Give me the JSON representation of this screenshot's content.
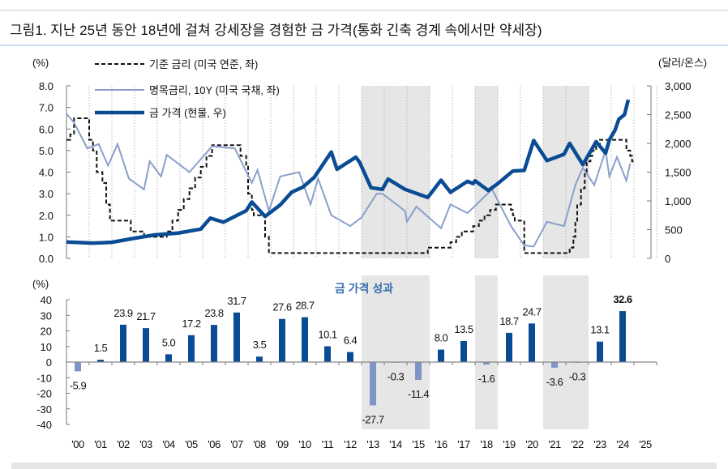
{
  "title": "그림1.  지난 25년 동안 18년에 걸쳐 강세장을 경험한 금 가격(통화 긴축 경계 속에서만 약세장)",
  "colors": {
    "gold": "#0a4c94",
    "yield": "#8a9fcb",
    "fed": "#111111",
    "bar_pos": "#0a4c94",
    "bar_neg": "#7f95c6",
    "shade": "#e6e6e6"
  },
  "chart_data": [
    {
      "type": "line",
      "left_unit": "(%)",
      "right_unit": "(달러/온스)",
      "left_ylim": [
        0,
        8
      ],
      "right_ylim": [
        0,
        3000
      ],
      "left_ticks": [
        "8.0",
        "7.0",
        "6.0",
        "5.0",
        "4.0",
        "3.0",
        "2.0",
        "1.0",
        "0.0"
      ],
      "right_ticks": [
        "3,000",
        "2,500",
        "2,000",
        "1,500",
        "1,000",
        "500",
        "0"
      ],
      "xlim": [
        "2000-01",
        "2025-12"
      ],
      "shaded_periods": [
        [
          "2013-01",
          "2015-12"
        ],
        [
          "2018-01",
          "2018-12"
        ],
        [
          "2021-01",
          "2022-12"
        ]
      ],
      "series": [
        {
          "name": "기준 금리 (미국 연준, 좌)",
          "axis": "left",
          "style": "dashed-step",
          "points": [
            [
              "2000-01",
              5.5
            ],
            [
              "2000-03",
              5.75
            ],
            [
              "2000-05",
              6.5
            ],
            [
              "2001-01",
              5.5
            ],
            [
              "2001-03",
              5.0
            ],
            [
              "2001-05",
              4.0
            ],
            [
              "2001-08",
              3.5
            ],
            [
              "2001-10",
              2.5
            ],
            [
              "2001-12",
              1.75
            ],
            [
              "2002-11",
              1.25
            ],
            [
              "2003-06",
              1.0
            ],
            [
              "2004-06",
              1.25
            ],
            [
              "2004-09",
              1.75
            ],
            [
              "2004-12",
              2.25
            ],
            [
              "2005-03",
              2.75
            ],
            [
              "2005-06",
              3.25
            ],
            [
              "2005-09",
              3.75
            ],
            [
              "2005-12",
              4.25
            ],
            [
              "2006-03",
              4.75
            ],
            [
              "2006-06",
              5.25
            ],
            [
              "2007-09",
              4.75
            ],
            [
              "2007-12",
              4.25
            ],
            [
              "2008-01",
              3.0
            ],
            [
              "2008-03",
              2.25
            ],
            [
              "2008-04",
              2.0
            ],
            [
              "2008-10",
              1.0
            ],
            [
              "2008-12",
              0.25
            ],
            [
              "2015-12",
              0.5
            ],
            [
              "2016-12",
              0.75
            ],
            [
              "2017-03",
              1.0
            ],
            [
              "2017-06",
              1.25
            ],
            [
              "2017-12",
              1.5
            ],
            [
              "2018-03",
              1.75
            ],
            [
              "2018-06",
              2.0
            ],
            [
              "2018-09",
              2.25
            ],
            [
              "2018-12",
              2.5
            ],
            [
              "2019-08",
              2.25
            ],
            [
              "2019-09",
              2.0
            ],
            [
              "2019-10",
              1.75
            ],
            [
              "2020-03",
              0.25
            ],
            [
              "2022-03",
              0.5
            ],
            [
              "2022-05",
              1.0
            ],
            [
              "2022-06",
              1.75
            ],
            [
              "2022-07",
              2.5
            ],
            [
              "2022-09",
              3.25
            ],
            [
              "2022-11",
              4.0
            ],
            [
              "2022-12",
              4.5
            ],
            [
              "2023-02",
              4.75
            ],
            [
              "2023-03",
              5.0
            ],
            [
              "2023-05",
              5.25
            ],
            [
              "2023-07",
              5.5
            ],
            [
              "2024-09",
              5.0
            ],
            [
              "2024-11",
              4.75
            ],
            [
              "2024-12",
              4.5
            ]
          ]
        },
        {
          "name": "명목금리, 10Y (미국 국채, 좌)",
          "axis": "left",
          "style": "thin",
          "points": [
            [
              "2000-01",
              6.7
            ],
            [
              "2000-05",
              6.3
            ],
            [
              "2000-12",
              5.1
            ],
            [
              "2001-06",
              5.3
            ],
            [
              "2001-11",
              4.3
            ],
            [
              "2002-04",
              5.3
            ],
            [
              "2002-10",
              3.7
            ],
            [
              "2003-06",
              3.2
            ],
            [
              "2003-09",
              4.5
            ],
            [
              "2004-03",
              3.8
            ],
            [
              "2004-06",
              4.8
            ],
            [
              "2005-06",
              4.0
            ],
            [
              "2006-06",
              5.2
            ],
            [
              "2007-06",
              5.1
            ],
            [
              "2008-03",
              3.5
            ],
            [
              "2008-06",
              4.1
            ],
            [
              "2008-12",
              2.2
            ],
            [
              "2009-06",
              3.8
            ],
            [
              "2010-04",
              4.0
            ],
            [
              "2010-10",
              2.5
            ],
            [
              "2011-02",
              3.7
            ],
            [
              "2011-09",
              2.0
            ],
            [
              "2012-07",
              1.5
            ],
            [
              "2013-01",
              1.9
            ],
            [
              "2013-09",
              3.0
            ],
            [
              "2013-12",
              3.0
            ],
            [
              "2014-12",
              2.2
            ],
            [
              "2015-01",
              1.7
            ],
            [
              "2015-06",
              2.4
            ],
            [
              "2016-07",
              1.4
            ],
            [
              "2016-12",
              2.5
            ],
            [
              "2017-09",
              2.1
            ],
            [
              "2018-10",
              3.2
            ],
            [
              "2019-08",
              1.5
            ],
            [
              "2020-03",
              0.6
            ],
            [
              "2020-08",
              0.55
            ],
            [
              "2021-03",
              1.7
            ],
            [
              "2021-12",
              1.5
            ],
            [
              "2022-06",
              3.4
            ],
            [
              "2022-10",
              4.2
            ],
            [
              "2023-04",
              3.4
            ],
            [
              "2023-10",
              5.0
            ],
            [
              "2023-12",
              3.8
            ],
            [
              "2024-04",
              4.7
            ],
            [
              "2024-09",
              3.6
            ],
            [
              "2024-11",
              4.4
            ]
          ]
        },
        {
          "name": "금 가격 (현물, 우)",
          "axis": "right",
          "style": "thick",
          "points": [
            [
              "2000-01",
              285
            ],
            [
              "2001-03",
              265
            ],
            [
              "2002-01",
              280
            ],
            [
              "2002-12",
              345
            ],
            [
              "2003-12",
              410
            ],
            [
              "2004-12",
              440
            ],
            [
              "2005-12",
              510
            ],
            [
              "2006-05",
              700
            ],
            [
              "2006-12",
              630
            ],
            [
              "2007-12",
              830
            ],
            [
              "2008-03",
              980
            ],
            [
              "2008-10",
              730
            ],
            [
              "2009-06",
              930
            ],
            [
              "2009-12",
              1150
            ],
            [
              "2010-06",
              1240
            ],
            [
              "2010-12",
              1410
            ],
            [
              "2011-09",
              1850
            ],
            [
              "2011-12",
              1550
            ],
            [
              "2012-10",
              1760
            ],
            [
              "2012-12",
              1670
            ],
            [
              "2013-06",
              1230
            ],
            [
              "2013-12",
              1200
            ],
            [
              "2014-03",
              1380
            ],
            [
              "2014-12",
              1200
            ],
            [
              "2015-12",
              1060
            ],
            [
              "2016-07",
              1360
            ],
            [
              "2016-12",
              1150
            ],
            [
              "2017-09",
              1340
            ],
            [
              "2017-12",
              1300
            ],
            [
              "2018-01",
              1350
            ],
            [
              "2018-08",
              1180
            ],
            [
              "2019-01",
              1300
            ],
            [
              "2019-09",
              1520
            ],
            [
              "2020-03",
              1530
            ],
            [
              "2020-08",
              2050
            ],
            [
              "2021-03",
              1700
            ],
            [
              "2021-12",
              1810
            ],
            [
              "2022-03",
              2000
            ],
            [
              "2022-10",
              1630
            ],
            [
              "2023-05",
              2030
            ],
            [
              "2023-10",
              1830
            ],
            [
              "2023-12",
              2060
            ],
            [
              "2024-03",
              2230
            ],
            [
              "2024-05",
              2420
            ],
            [
              "2024-08",
              2500
            ],
            [
              "2024-10",
              2760
            ]
          ]
        }
      ]
    },
    {
      "type": "bar",
      "title": "금 가격 성과",
      "unit": "(%)",
      "ylim": [
        -40,
        40
      ],
      "y_ticks": [
        "40",
        "30",
        "20",
        "10",
        "0",
        "-10",
        "-20",
        "-30",
        "-40"
      ],
      "categories": [
        "'00",
        "'01",
        "'02",
        "'03",
        "'04",
        "'05",
        "'06",
        "'07",
        "'08",
        "'09",
        "'10",
        "'11",
        "'12",
        "'13",
        "'14",
        "'15",
        "'16",
        "'17",
        "'18",
        "'19",
        "'20",
        "'21",
        "'22",
        "'23",
        "'24",
        "'25"
      ],
      "values": [
        -5.9,
        1.5,
        23.9,
        21.7,
        5.0,
        17.2,
        23.8,
        31.7,
        3.5,
        27.6,
        28.7,
        10.1,
        6.4,
        -27.7,
        -0.3,
        -11.4,
        8.0,
        13.5,
        -1.6,
        18.7,
        24.7,
        -3.6,
        -0.3,
        13.1,
        32.6,
        null
      ],
      "labels": [
        "-5.9",
        "1.5",
        "23.9",
        "21.7",
        "5.0",
        "17.2",
        "23.8",
        "31.7",
        "3.5",
        "27.6",
        "28.7",
        "10.1",
        "6.4",
        "-27.7",
        "-0.3",
        "-11.4",
        "8.0",
        "13.5",
        "-1.6",
        "18.7",
        "24.7",
        "-3.6",
        "-0.3",
        "13.1",
        "32.6",
        ""
      ],
      "highlight_label": "32.6",
      "shaded_periods": [
        [
          "'13",
          "'15"
        ],
        [
          "'18",
          "'18"
        ],
        [
          "'21",
          "'22"
        ]
      ]
    }
  ]
}
